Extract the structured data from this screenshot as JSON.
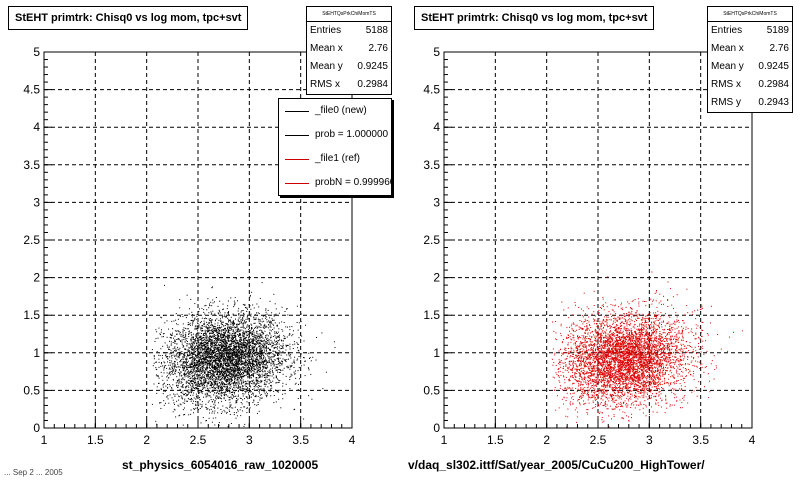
{
  "chart_data": [
    {
      "type": "scatter",
      "title": "StEHT primtrk: Chisq0 vs log mom, tpc+svt",
      "xlabel": "st_physics_6054016_raw_1020005",
      "ylabel": "",
      "xlim": [
        1,
        4
      ],
      "ylim": [
        0,
        5
      ],
      "xticks": [
        "1",
        "1.5",
        "2",
        "2.5",
        "3",
        "3.5",
        "4"
      ],
      "yticks": [
        "0",
        "0.5",
        "1",
        "1.5",
        "2",
        "2.5",
        "3",
        "3.5",
        "4",
        "4.5",
        "5"
      ],
      "grid": true,
      "marker_color": "#000000",
      "stats": {
        "name": "StEHTQsPrkChiMomTS",
        "rows": [
          {
            "label": "Entries",
            "value": "5188"
          },
          {
            "label": "Mean x",
            "value": "2.76"
          },
          {
            "label": "Mean y",
            "value": "0.9245"
          },
          {
            "label": "RMS x",
            "value": "0.2984"
          }
        ]
      },
      "legend": {
        "placement": "top-right",
        "entries": [
          {
            "label": "_file0 (new)",
            "color": "#000000"
          },
          {
            "label": "prob = 1.000000",
            "color": "#000000"
          },
          {
            "label": "_file1 (ref)",
            "color": "#cc0000"
          },
          {
            "label": "probN = 0.999960",
            "color": "#cc0000"
          }
        ]
      },
      "distribution": {
        "entries": 5188,
        "mean_x": 2.76,
        "mean_y": 0.9245,
        "rms_x": 0.2984,
        "rms_y": 0.2943
      }
    },
    {
      "type": "scatter",
      "title": "StEHT primtrk: Chisq0 vs log mom, tpc+svt",
      "xlabel": "v/daq_sl302.ittf/Sat/year_2005/CuCu200_HighTower/",
      "ylabel": "",
      "xlim": [
        1,
        4
      ],
      "ylim": [
        0,
        5
      ],
      "xticks": [
        "1",
        "1.5",
        "2",
        "2.5",
        "3",
        "3.5",
        "4"
      ],
      "yticks": [
        "0",
        "0.5",
        "1",
        "1.5",
        "2",
        "2.5",
        "3",
        "3.5",
        "4",
        "4.5",
        "5"
      ],
      "grid": true,
      "marker_color": "#dd0000",
      "stats": {
        "name": "StEHTQsPrkChiMomTS",
        "rows": [
          {
            "label": "Entries",
            "value": "5189"
          },
          {
            "label": "Mean x",
            "value": "2.76"
          },
          {
            "label": "Mean y",
            "value": "0.9245"
          },
          {
            "label": "RMS x",
            "value": "0.2984"
          },
          {
            "label": "RMS y",
            "value": "0.2943"
          }
        ]
      },
      "distribution": {
        "entries": 5189,
        "mean_x": 2.76,
        "mean_y": 0.9245,
        "rms_x": 0.2984,
        "rms_y": 0.2943
      }
    }
  ],
  "footer": "... Sep 2 ... 2005"
}
